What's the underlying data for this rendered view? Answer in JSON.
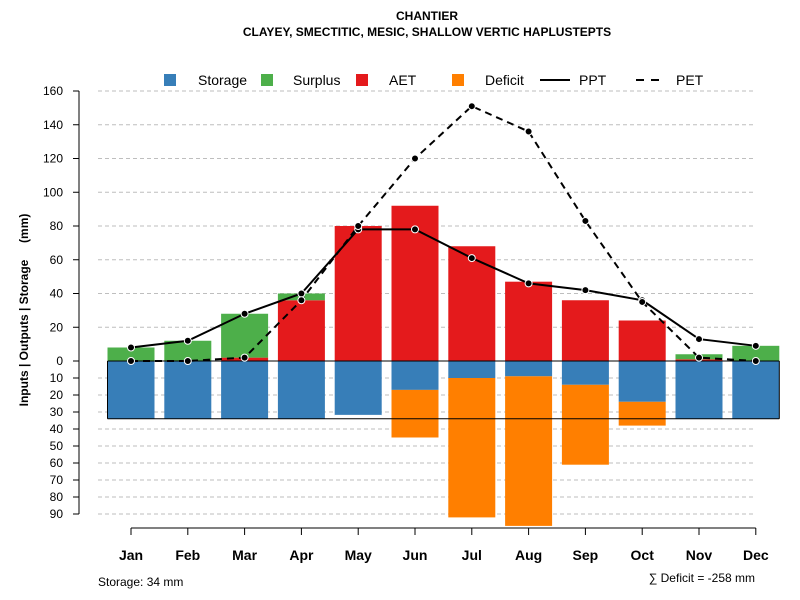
{
  "chart_data": {
    "type": "bar",
    "title": "CHANTIER",
    "subtitle": "CLAYEY, SMECTITIC, MESIC, SHALLOW VERTIC HAPLUSTEPTS",
    "ylabel": "Inputs | Outputs | Storage     (mm)",
    "categories": [
      "Jan",
      "Feb",
      "Mar",
      "Apr",
      "May",
      "Jun",
      "Jul",
      "Aug",
      "Sep",
      "Oct",
      "Nov",
      "Dec"
    ],
    "ylim_upper": [
      0,
      160
    ],
    "ylim_lower": [
      0,
      90
    ],
    "yticks_upper": [
      "0",
      "20",
      "40",
      "60",
      "80",
      "100",
      "120",
      "140",
      "160"
    ],
    "yticks_lower": [
      "10",
      "20",
      "30",
      "40",
      "50",
      "60",
      "70",
      "80",
      "90"
    ],
    "grid": true,
    "legend_position": "top",
    "legend": [
      {
        "name": "Storage",
        "kind": "box",
        "color": "#377EB8"
      },
      {
        "name": "Surplus",
        "kind": "box",
        "color": "#4DAF4A"
      },
      {
        "name": "AET",
        "kind": "box",
        "color": "#E41A1C"
      },
      {
        "name": "Deficit",
        "kind": "box",
        "color": "#FF7F00"
      },
      {
        "name": "PPT",
        "kind": "solid"
      },
      {
        "name": "PET",
        "kind": "dashed"
      }
    ],
    "series": [
      {
        "name": "Storage",
        "values": [
          34,
          34,
          34,
          34,
          32,
          17,
          10,
          9,
          14,
          24,
          34,
          34
        ]
      },
      {
        "name": "Surplus",
        "values": [
          8,
          12,
          26,
          4,
          0,
          0,
          0,
          0,
          0,
          0,
          3,
          9
        ]
      },
      {
        "name": "AET",
        "values": [
          0,
          0,
          2,
          36,
          80,
          92,
          68,
          47,
          36,
          24,
          1,
          0
        ]
      },
      {
        "name": "Deficit",
        "values": [
          0,
          0,
          0,
          0,
          0,
          28,
          82,
          88,
          47,
          14,
          0,
          0
        ]
      },
      {
        "name": "PPT",
        "values": [
          8,
          12,
          28,
          40,
          78,
          78,
          61,
          46,
          42,
          36,
          13,
          9
        ]
      },
      {
        "name": "PET",
        "values": [
          0,
          0,
          2,
          36,
          80,
          120,
          151,
          136,
          83,
          35,
          2,
          0
        ]
      }
    ],
    "footer_left": "Storage: 34 mm",
    "footer_right": "∑ Deficit = -258 mm",
    "colors": {
      "storage": "#377EB8",
      "surplus": "#4DAF4A",
      "aet": "#E41A1C",
      "deficit": "#FF7F00",
      "grid": "#BEBEBE"
    }
  }
}
